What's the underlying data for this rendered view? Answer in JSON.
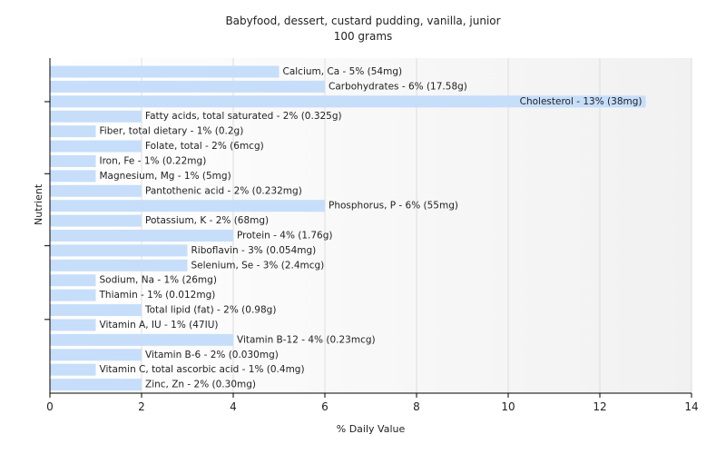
{
  "chart_data": {
    "type": "bar",
    "orientation": "horizontal",
    "title": "Babyfood, dessert, custard pudding, vanilla, junior",
    "subtitle": "100 grams",
    "xlabel": "% Daily Value",
    "ylabel": "Nutrient",
    "xlim": [
      0,
      14
    ],
    "xticks": [
      0,
      2,
      4,
      6,
      8,
      10,
      12,
      14
    ],
    "grid": true,
    "bar_color": "#c6defa",
    "bars": [
      {
        "label": "Calcium, Ca - 5% (54mg)",
        "value": 5
      },
      {
        "label": "Carbohydrates - 6% (17.58g)",
        "value": 6
      },
      {
        "label": "Cholesterol - 13% (38mg)",
        "value": 13
      },
      {
        "label": "Fatty acids, total saturated - 2% (0.325g)",
        "value": 2
      },
      {
        "label": "Fiber, total dietary - 1% (0.2g)",
        "value": 1
      },
      {
        "label": "Folate, total - 2% (6mcg)",
        "value": 2
      },
      {
        "label": "Iron, Fe - 1% (0.22mg)",
        "value": 1
      },
      {
        "label": "Magnesium, Mg - 1% (5mg)",
        "value": 1
      },
      {
        "label": "Pantothenic acid - 2% (0.232mg)",
        "value": 2
      },
      {
        "label": "Phosphorus, P - 6% (55mg)",
        "value": 6
      },
      {
        "label": "Potassium, K - 2% (68mg)",
        "value": 2
      },
      {
        "label": "Protein - 4% (1.76g)",
        "value": 4
      },
      {
        "label": "Riboflavin - 3% (0.054mg)",
        "value": 3
      },
      {
        "label": "Selenium, Se - 3% (2.4mcg)",
        "value": 3
      },
      {
        "label": "Sodium, Na - 1% (26mg)",
        "value": 1
      },
      {
        "label": "Thiamin - 1% (0.012mg)",
        "value": 1
      },
      {
        "label": "Total lipid (fat) - 2% (0.98g)",
        "value": 2
      },
      {
        "label": "Vitamin A, IU - 1% (47IU)",
        "value": 1
      },
      {
        "label": "Vitamin B-12 - 4% (0.23mcg)",
        "value": 4
      },
      {
        "label": "Vitamin B-6 - 2% (0.030mg)",
        "value": 2
      },
      {
        "label": "Vitamin C, total ascorbic acid - 1% (0.4mg)",
        "value": 1
      },
      {
        "label": "Zinc, Zn - 2% (0.30mg)",
        "value": 2
      }
    ]
  }
}
